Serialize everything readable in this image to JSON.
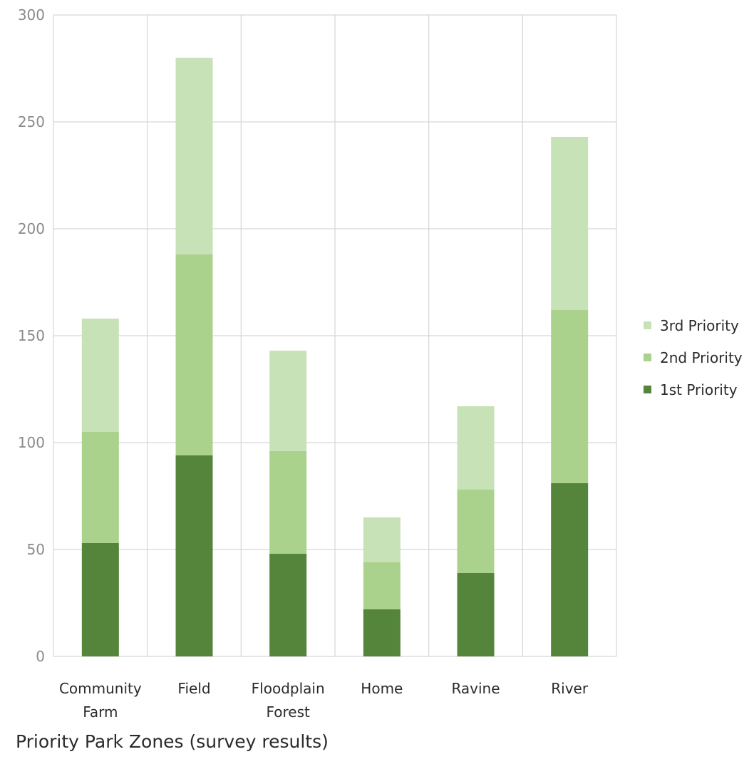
{
  "chart_data": {
    "type": "bar",
    "stacked": true,
    "title": "Priority Park Zones (survey results)",
    "xlabel": "",
    "ylabel": "",
    "categories": [
      "Community Farm",
      "Field",
      "Floodplain Forest",
      "Home",
      "Ravine",
      "River"
    ],
    "category_lines": [
      [
        "Community",
        "Farm"
      ],
      [
        "Field"
      ],
      [
        "Floodplain",
        "Forest"
      ],
      [
        "Home"
      ],
      [
        "Ravine"
      ],
      [
        "River"
      ]
    ],
    "series": [
      {
        "name": "1st Priority",
        "color": "#55843b",
        "values": [
          53,
          94,
          48,
          22,
          39,
          81
        ]
      },
      {
        "name": "2nd Priority",
        "color": "#abd28d",
        "values": [
          52,
          94,
          48,
          22,
          39,
          81
        ]
      },
      {
        "name": "3rd Priority",
        "color": "#c7e2b6",
        "values": [
          53,
          92,
          47,
          21,
          39,
          81
        ]
      }
    ],
    "ylim": [
      0,
      300
    ],
    "yticks": [
      "0",
      "50",
      "100",
      "150",
      "200",
      "250",
      "300"
    ],
    "grid": true,
    "legend_position": "right",
    "legend_order": [
      "3rd Priority",
      "2nd Priority",
      "1st Priority"
    ]
  }
}
